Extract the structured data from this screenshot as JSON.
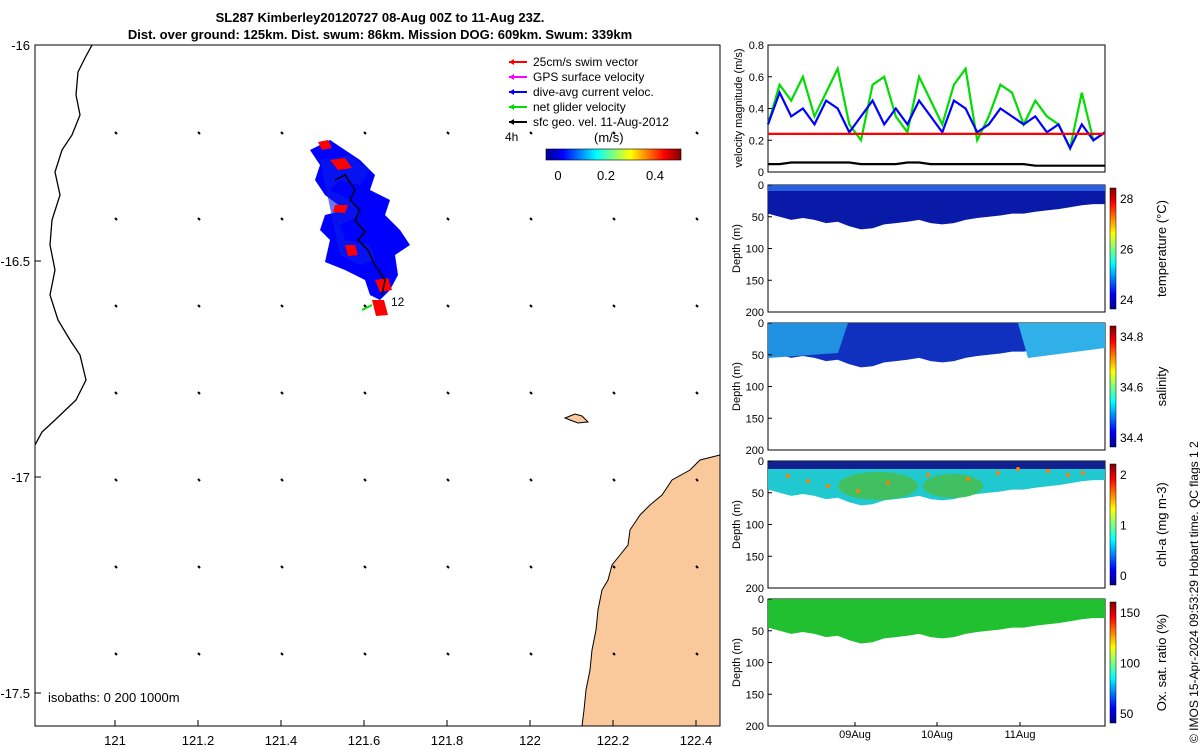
{
  "title_line1": "SL287 Kimberley20120727 08-Aug 00Z to 11-Aug 23Z.",
  "title_line2": "Dist. over ground: 125km. Dist. swum: 86km. Mission DOG: 609km. Swum: 339km",
  "credit": "© IMOS 15-Apr-2024 09:53:29 Hobart time. QC flags 1 2",
  "map": {
    "x_ticks": [
      "121",
      "121.2",
      "121.4",
      "121.6",
      "121.8",
      "122",
      "122.2",
      "122.4"
    ],
    "y_ticks": [
      "-16",
      "-16.5",
      "-17",
      "-17.5"
    ],
    "legend": [
      {
        "label": "25cm/s swim vector",
        "color": "#ff0000"
      },
      {
        "label": "GPS surface velocity",
        "color": "#ff00ff"
      },
      {
        "label": "dive-avg current veloc.",
        "color": "#0000ff"
      },
      {
        "label": "net glider velocity",
        "color": "#00dd00"
      },
      {
        "label": "sfc geo. vel. 11-Aug-2012",
        "color": "#000000"
      }
    ],
    "colorbar_unit": "(m/s)",
    "colorbar_ticks": [
      "0",
      "0.2",
      "0.4"
    ],
    "label_4h": "4h",
    "label_12": "12",
    "isobaths": "isobaths: 0   200  1000m",
    "land_color": "#f9c99c"
  },
  "chart_data": [
    {
      "type": "line",
      "title": "",
      "xlabel": "",
      "ylabel": "velocity magnitude (m/s)",
      "ylim": [
        0,
        0.8
      ],
      "y_ticks": [
        "0",
        "0.2",
        "0.4",
        "0.6",
        "0.8"
      ],
      "series": [
        {
          "name": "net glider velocity",
          "color": "#00dd00",
          "values": [
            0.3,
            0.55,
            0.45,
            0.6,
            0.35,
            0.5,
            0.65,
            0.3,
            0.2,
            0.55,
            0.6,
            0.35,
            0.25,
            0.6,
            0.45,
            0.3,
            0.55,
            0.65,
            0.2,
            0.35,
            0.55,
            0.5,
            0.3,
            0.45,
            0.35,
            0.3,
            0.15,
            0.5,
            0.2,
            0.25
          ]
        },
        {
          "name": "dive-avg current veloc.",
          "color": "#0000ff",
          "values": [
            0.3,
            0.5,
            0.35,
            0.4,
            0.3,
            0.45,
            0.4,
            0.25,
            0.35,
            0.45,
            0.3,
            0.4,
            0.3,
            0.45,
            0.35,
            0.25,
            0.45,
            0.4,
            0.25,
            0.3,
            0.4,
            0.35,
            0.3,
            0.35,
            0.25,
            0.3,
            0.15,
            0.3,
            0.2,
            0.25
          ]
        },
        {
          "name": "25cm/s swim vector",
          "color": "#ff0000",
          "values": [
            0.24,
            0.24,
            0.24,
            0.24,
            0.24,
            0.24,
            0.24,
            0.24,
            0.24,
            0.24,
            0.24,
            0.24,
            0.24,
            0.24,
            0.24,
            0.24,
            0.24,
            0.24,
            0.24,
            0.24,
            0.24,
            0.24,
            0.24,
            0.24,
            0.24,
            0.24,
            0.24,
            0.24,
            0.24,
            0.24
          ]
        },
        {
          "name": "sfc geo. vel. 11-Aug-2012",
          "color": "#000000",
          "values": [
            0.05,
            0.05,
            0.06,
            0.06,
            0.06,
            0.06,
            0.06,
            0.06,
            0.05,
            0.05,
            0.05,
            0.05,
            0.06,
            0.06,
            0.05,
            0.05,
            0.05,
            0.05,
            0.05,
            0.05,
            0.05,
            0.05,
            0.05,
            0.04,
            0.04,
            0.04,
            0.04,
            0.04,
            0.04,
            0.04
          ]
        }
      ]
    },
    {
      "type": "scatter",
      "ylabel": "Depth (m)",
      "y_ticks": [
        "0",
        "50",
        "100",
        "150",
        "200"
      ],
      "colorbar_label": "temperature (°C)",
      "colorbar_ticks": [
        "24",
        "26",
        "28"
      ],
      "max_depth_profile": [
        45,
        50,
        55,
        52,
        55,
        60,
        58,
        65,
        70,
        68,
        62,
        60,
        58,
        55,
        60,
        62,
        60,
        55,
        52,
        50,
        48,
        45,
        45,
        42,
        40,
        38,
        35,
        32,
        30,
        30
      ]
    },
    {
      "type": "scatter",
      "ylabel": "Depth (m)",
      "y_ticks": [
        "0",
        "50",
        "100",
        "150",
        "200"
      ],
      "colorbar_label": "salinity",
      "colorbar_ticks": [
        "34.4",
        "34.6",
        "34.8"
      ]
    },
    {
      "type": "scatter",
      "ylabel": "Depth (m)",
      "y_ticks": [
        "0",
        "50",
        "100",
        "150",
        "200"
      ],
      "colorbar_label": "chl-a (mg m-3)",
      "colorbar_ticks": [
        "0",
        "1",
        "2"
      ]
    },
    {
      "type": "scatter",
      "ylabel": "Depth (m)",
      "y_ticks": [
        "0",
        "50",
        "100",
        "150",
        "200"
      ],
      "x_ticks": [
        "09Aug",
        "10Aug",
        "11Aug"
      ],
      "colorbar_label": "Ox. sat. ratio (%)",
      "colorbar_ticks": [
        "50",
        "100",
        "150"
      ]
    }
  ]
}
